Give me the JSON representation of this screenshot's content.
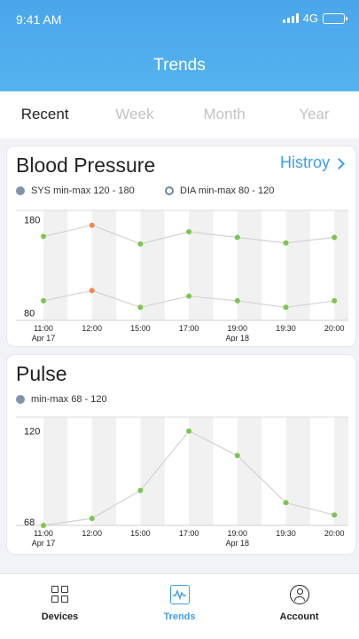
{
  "status_bar": {
    "time": "9:41 AM",
    "network": "4G"
  },
  "header": {
    "title": "Trends"
  },
  "tabs": [
    {
      "label": "Recent",
      "active": true
    },
    {
      "label": "Week",
      "active": false
    },
    {
      "label": "Month",
      "active": false
    },
    {
      "label": "Year",
      "active": false
    }
  ],
  "blood_pressure": {
    "title": "Blood Pressure",
    "history_label": "Histroy",
    "legend": [
      {
        "label": "SYS min-max 120 - 180",
        "style": "filled"
      },
      {
        "label": "DIA min-max 80 - 120",
        "style": "ring"
      }
    ]
  },
  "pulse": {
    "title": "Pulse",
    "legend": [
      {
        "label": "min-max 68 - 120",
        "style": "filled"
      }
    ]
  },
  "colors": {
    "accent": "#3f9ee8",
    "normal_point": "#7cc650",
    "high_point": "#f08a4b",
    "line": "#d3d3d3",
    "band": "#f1f1f1"
  },
  "chart_data": [
    {
      "type": "line",
      "title": "Blood Pressure",
      "categories": [
        "11:00",
        "12:00",
        "15:00",
        "17:00",
        "19:00",
        "19:30",
        "20:00"
      ],
      "date_labels": [
        {
          "index": 0,
          "label": "Apr 17"
        },
        {
          "index": 4,
          "label": "Apr 18"
        }
      ],
      "y_tick_labels": [
        "180",
        "80"
      ],
      "ylim": [
        72,
        190
      ],
      "series": [
        {
          "name": "SYS",
          "values": [
            162,
            174,
            154,
            167,
            161,
            155,
            161
          ],
          "point_status": [
            "normal",
            "high",
            "normal",
            "normal",
            "normal",
            "normal",
            "normal"
          ]
        },
        {
          "name": "DIA",
          "values": [
            93,
            104,
            86,
            98,
            93,
            86,
            93
          ],
          "point_status": [
            "normal",
            "high",
            "normal",
            "normal",
            "normal",
            "normal",
            "normal"
          ]
        }
      ]
    },
    {
      "type": "line",
      "title": "Pulse",
      "categories": [
        "11:00",
        "12:00",
        "15:00",
        "17:00",
        "19:00",
        "19:30",
        "20:00"
      ],
      "date_labels": [
        {
          "index": 0,
          "label": "Apr 17"
        },
        {
          "index": 4,
          "label": "Apr 18"
        }
      ],
      "y_tick_labels": [
        "120",
        "68"
      ],
      "ylim": [
        66,
        128
      ],
      "series": [
        {
          "name": "Pulse",
          "values": [
            66,
            70,
            86,
            120,
            106,
            79,
            72
          ],
          "point_status": [
            "normal",
            "normal",
            "normal",
            "normal",
            "normal",
            "normal",
            "normal"
          ]
        }
      ]
    }
  ],
  "bottom_nav": [
    {
      "label": "Devices",
      "icon": "grid-icon",
      "active": false
    },
    {
      "label": "Trends",
      "icon": "trend-icon",
      "active": true
    },
    {
      "label": "Account",
      "icon": "account-icon",
      "active": false
    }
  ]
}
